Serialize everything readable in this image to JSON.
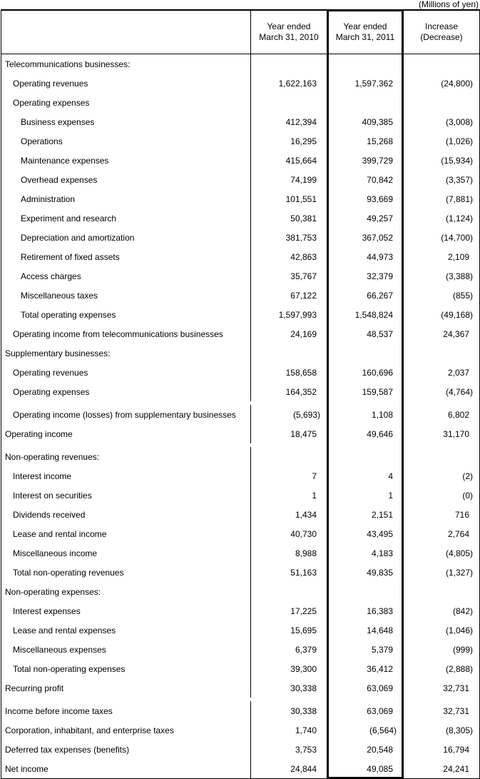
{
  "caption": "(Millions of yen)",
  "table": {
    "columns": [
      {
        "line1": "Year ended",
        "line2": "March 31, 2010"
      },
      {
        "line1": "Year ended",
        "line2": "March 31, 2011"
      },
      {
        "line1": "Increase",
        "line2": "(Decrease)"
      }
    ],
    "rows": [
      {
        "label": "Telecommunications businesses:",
        "indent": 0,
        "v2010": "",
        "v2011": "",
        "change": ""
      },
      {
        "label": "Operating revenues",
        "indent": 1,
        "v2010": "1,622,163",
        "v2011": "1,597,362",
        "change": "(24,800)"
      },
      {
        "label": "Operating expenses",
        "indent": 1,
        "v2010": "",
        "v2011": "",
        "change": ""
      },
      {
        "label": "Business expenses",
        "indent": 2,
        "v2010": "412,394",
        "v2011": "409,385",
        "change": "(3,008)"
      },
      {
        "label": "Operations",
        "indent": 2,
        "v2010": "16,295",
        "v2011": "15,268",
        "change": "(1,026)"
      },
      {
        "label": "Maintenance expenses",
        "indent": 2,
        "v2010": "415,664",
        "v2011": "399,729",
        "change": "(15,934)"
      },
      {
        "label": "Overhead expenses",
        "indent": 2,
        "v2010": "74,199",
        "v2011": "70,842",
        "change": "(3,357)"
      },
      {
        "label": "Administration",
        "indent": 2,
        "v2010": "101,551",
        "v2011": "93,669",
        "change": "(7,881)"
      },
      {
        "label": "Experiment and research",
        "indent": 2,
        "v2010": "50,381",
        "v2011": "49,257",
        "change": "(1,124)"
      },
      {
        "label": "Depreciation and amortization",
        "indent": 2,
        "v2010": "381,753",
        "v2011": "367,052",
        "change": "(14,700)"
      },
      {
        "label": "Retirement of fixed assets",
        "indent": 2,
        "v2010": "42,863",
        "v2011": "44,973",
        "change": "2,109"
      },
      {
        "label": "Access charges",
        "indent": 2,
        "v2010": "35,767",
        "v2011": "32,379",
        "change": "(3,388)"
      },
      {
        "label": "Miscellaneous taxes",
        "indent": 2,
        "v2010": "67,122",
        "v2011": "66,267",
        "change": "(855)"
      },
      {
        "label": "Total operating expenses",
        "indent": 2,
        "v2010": "1,597,993",
        "v2011": "1,548,824",
        "change": "(49,168)"
      },
      {
        "label": "Operating income from telecommunications businesses",
        "indent": 1,
        "v2010": "24,169",
        "v2011": "48,537",
        "change": "24,367"
      },
      {
        "label": "Supplementary businesses:",
        "indent": 0,
        "v2010": "",
        "v2011": "",
        "change": ""
      },
      {
        "label": "Operating revenues",
        "indent": 1,
        "v2010": "158,658",
        "v2011": "160,696",
        "change": "2,037"
      },
      {
        "label": "Operating expenses",
        "indent": 1,
        "v2010": "164,352",
        "v2011": "159,587",
        "change": "(4,764)"
      },
      {
        "label": "Operating income (losses) from supplementary businesses",
        "indent": 1,
        "tall": true,
        "v2010": "(5,693)",
        "v2011": "1,108",
        "change": "6,802"
      },
      {
        "label": "Operating income",
        "indent": 0,
        "v2010": "18,475",
        "v2011": "49,646",
        "change": "31,170"
      },
      {
        "label": "Non-operating revenues:",
        "indent": 0,
        "tall": true,
        "v2010": "",
        "v2011": "",
        "change": ""
      },
      {
        "label": "Interest income",
        "indent": 1,
        "v2010": "7",
        "v2011": "4",
        "change": "(2)"
      },
      {
        "label": "Interest on securities",
        "indent": 1,
        "v2010": "1",
        "v2011": "1",
        "change": "(0)"
      },
      {
        "label": "Dividends received",
        "indent": 1,
        "v2010": "1,434",
        "v2011": "2,151",
        "change": "716"
      },
      {
        "label": "Lease and rental income",
        "indent": 1,
        "v2010": "40,730",
        "v2011": "43,495",
        "change": "2,764"
      },
      {
        "label": "Miscellaneous income",
        "indent": 1,
        "v2010": "8,988",
        "v2011": "4,183",
        "change": "(4,805)"
      },
      {
        "label": "Total non-operating revenues",
        "indent": 1,
        "v2010": "51,163",
        "v2011": "49,835",
        "change": "(1,327)"
      },
      {
        "label": "Non-operating expenses:",
        "indent": 0,
        "v2010": "",
        "v2011": "",
        "change": ""
      },
      {
        "label": "Interest expenses",
        "indent": 1,
        "v2010": "17,225",
        "v2011": "16,383",
        "change": "(842)"
      },
      {
        "label": "Lease and rental expenses",
        "indent": 1,
        "v2010": "15,695",
        "v2011": "14,648",
        "change": "(1,046)"
      },
      {
        "label": "Miscellaneous expenses",
        "indent": 1,
        "v2010": "6,379",
        "v2011": "5,379",
        "change": "(999)"
      },
      {
        "label": "Total non-operating expenses",
        "indent": 1,
        "v2010": "39,300",
        "v2011": "36,412",
        "change": "(2,888)"
      },
      {
        "label": "Recurring profit",
        "indent": 0,
        "v2010": "30,338",
        "v2011": "63,069",
        "change": "32,731"
      },
      {
        "label": "Income before income taxes",
        "indent": 0,
        "tall": true,
        "v2010": "30,338",
        "v2011": "63,069",
        "change": "32,731"
      },
      {
        "label": "Corporation, inhabitant, and enterprise taxes",
        "indent": 0,
        "v2010": "1,740",
        "v2011": "(6,564)",
        "change": "(8,305)"
      },
      {
        "label": "Deferred tax expenses (benefits)",
        "indent": 0,
        "v2010": "3,753",
        "v2011": "20,548",
        "change": "16,794"
      },
      {
        "label": "Net income",
        "indent": 0,
        "v2010": "24,844",
        "v2011": "49,085",
        "change": "24,241"
      }
    ]
  }
}
